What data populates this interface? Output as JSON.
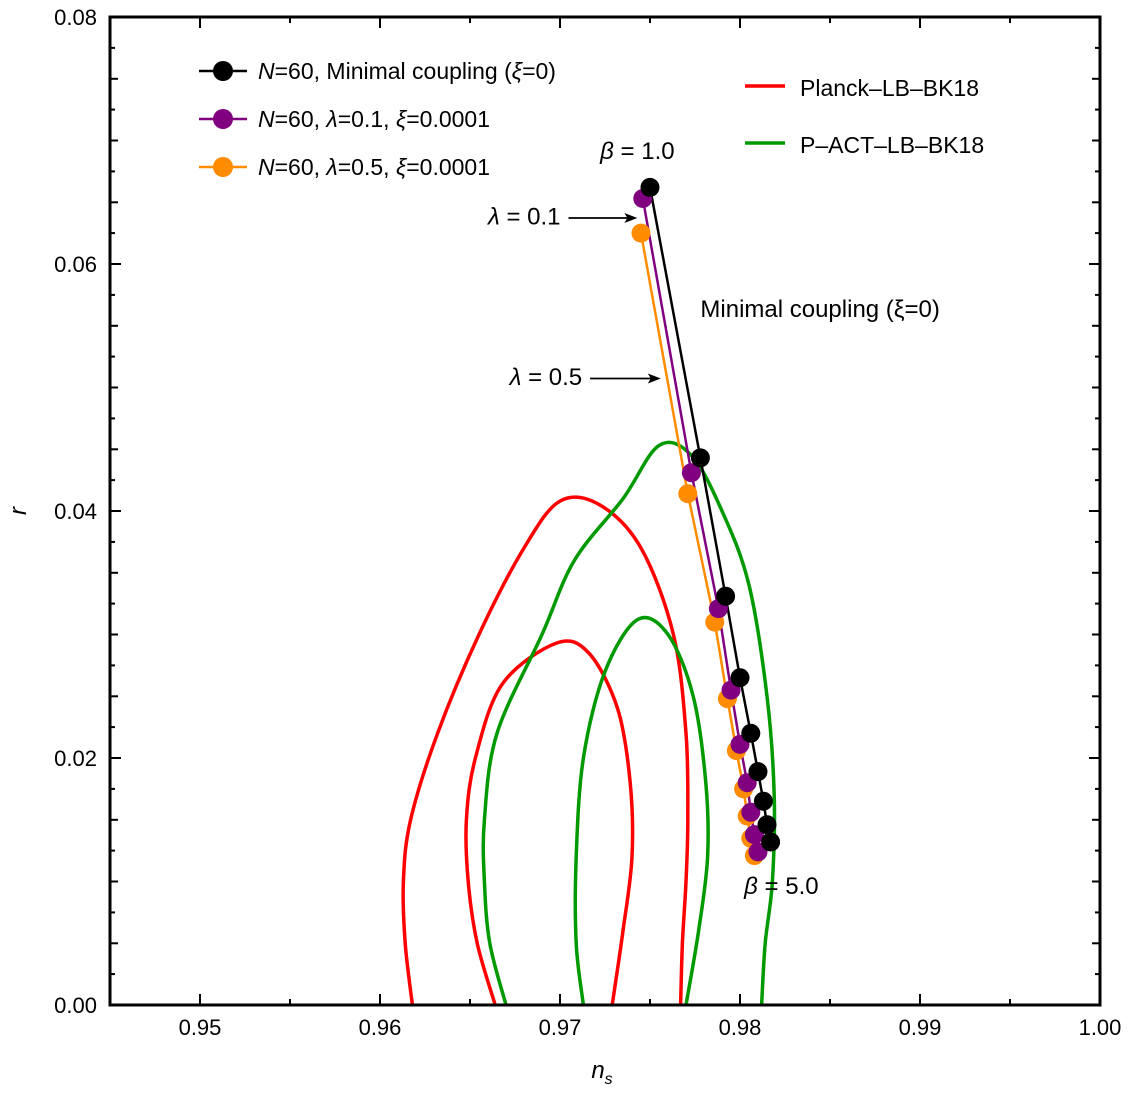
{
  "chart_data": {
    "type": "scatter",
    "title": "",
    "xlabel": "n",
    "xlabel_sub": "s",
    "ylabel": "r",
    "xlim": [
      0.945,
      1.0
    ],
    "ylim": [
      0.0,
      0.08
    ],
    "xticks": [
      0.95,
      0.96,
      0.97,
      0.98,
      0.99,
      1.0
    ],
    "xtick_labels": [
      "0.95",
      "0.96",
      "0.97",
      "0.98",
      "0.99",
      "1.00"
    ],
    "yticks": [
      0.0,
      0.02,
      0.04,
      0.06,
      0.08
    ],
    "ytick_labels": [
      "0.00",
      "0.02",
      "0.04",
      "0.06",
      "0.08"
    ],
    "series": [
      {
        "name": "N=60, Minimal coupling (ξ=0)",
        "legend_parts": [
          "N",
          "=60, Minimal coupling (",
          "ξ",
          "=0)"
        ],
        "color": "#000000",
        "x": [
          0.975,
          0.9778,
          0.9792,
          0.98,
          0.9806,
          0.981,
          0.9813,
          0.9815,
          0.9817
        ],
        "y": [
          0.0662,
          0.0443,
          0.0331,
          0.0265,
          0.022,
          0.0189,
          0.0165,
          0.0146,
          0.0132
        ]
      },
      {
        "name": "N=60, λ=0.1, ξ=0.0001",
        "legend_parts": [
          "N",
          "=60, ",
          "λ",
          "=0.1, ",
          "ξ",
          "=0.0001"
        ],
        "color": "#800080",
        "x": [
          0.9746,
          0.9773,
          0.9788,
          0.9795,
          0.98,
          0.9804,
          0.9806,
          0.9808,
          0.981
        ],
        "y": [
          0.0653,
          0.0431,
          0.0321,
          0.0255,
          0.0211,
          0.018,
          0.0156,
          0.0138,
          0.0124
        ]
      },
      {
        "name": "N=60, λ=0.5, ξ=0.0001",
        "legend_parts": [
          "N",
          "=60, ",
          "λ",
          "=0.5, ",
          "ξ",
          "=0.0001"
        ],
        "color": "#FF8C00",
        "x": [
          0.9745,
          0.9771,
          0.9786,
          0.9793,
          0.9798,
          0.9802,
          0.9804,
          0.9806,
          0.9808
        ],
        "y": [
          0.0625,
          0.0414,
          0.031,
          0.0248,
          0.0206,
          0.0175,
          0.0153,
          0.0135,
          0.0121
        ]
      }
    ],
    "contours": [
      {
        "name": "Planck–LB–BK18",
        "legend": true,
        "color": "#FF0000",
        "level": "95%",
        "points": [
          [
            0.9618,
            0.0
          ],
          [
            0.9614,
            0.005
          ],
          [
            0.9613,
            0.01
          ],
          [
            0.9617,
            0.015
          ],
          [
            0.9632,
            0.022
          ],
          [
            0.9655,
            0.03
          ],
          [
            0.968,
            0.037
          ],
          [
            0.97,
            0.0408
          ],
          [
            0.9722,
            0.0405
          ],
          [
            0.9745,
            0.037
          ],
          [
            0.9763,
            0.03
          ],
          [
            0.977,
            0.022
          ],
          [
            0.9771,
            0.015
          ],
          [
            0.977,
            0.01
          ],
          [
            0.9768,
            0.005
          ],
          [
            0.9767,
            0.0
          ]
        ]
      },
      {
        "name": "Planck–LB–BK18",
        "legend": false,
        "color": "#FF0000",
        "level": "68%",
        "points": [
          [
            0.9664,
            0.0
          ],
          [
            0.9654,
            0.005
          ],
          [
            0.9649,
            0.01
          ],
          [
            0.9648,
            0.015
          ],
          [
            0.9653,
            0.02
          ],
          [
            0.9668,
            0.026
          ],
          [
            0.9698,
            0.0293
          ],
          [
            0.9716,
            0.0285
          ],
          [
            0.9732,
            0.024
          ],
          [
            0.9739,
            0.018
          ],
          [
            0.974,
            0.012
          ],
          [
            0.9735,
            0.006
          ],
          [
            0.9729,
            0.0
          ]
        ]
      },
      {
        "name": "P–ACT–LB–BK18",
        "legend": true,
        "color": "#009900",
        "level": "95%",
        "points": [
          [
            0.967,
            0.0
          ],
          [
            0.9661,
            0.005
          ],
          [
            0.9658,
            0.01
          ],
          [
            0.9658,
            0.015
          ],
          [
            0.9665,
            0.022
          ],
          [
            0.969,
            0.03
          ],
          [
            0.9708,
            0.036
          ],
          [
            0.9735,
            0.041
          ],
          [
            0.9755,
            0.0453
          ],
          [
            0.9773,
            0.0445
          ],
          [
            0.979,
            0.04
          ],
          [
            0.9805,
            0.034
          ],
          [
            0.9815,
            0.025
          ],
          [
            0.9819,
            0.017
          ],
          [
            0.9818,
            0.01
          ],
          [
            0.9814,
            0.005
          ],
          [
            0.9812,
            0.0
          ]
        ]
      },
      {
        "name": "P–ACT–LB–BK18",
        "legend": false,
        "color": "#009900",
        "level": "68%",
        "points": [
          [
            0.9713,
            0.0
          ],
          [
            0.9709,
            0.005
          ],
          [
            0.9709,
            0.012
          ],
          [
            0.9713,
            0.02
          ],
          [
            0.9725,
            0.027
          ],
          [
            0.9743,
            0.0312
          ],
          [
            0.976,
            0.03
          ],
          [
            0.9774,
            0.025
          ],
          [
            0.9781,
            0.018
          ],
          [
            0.9782,
            0.012
          ],
          [
            0.9777,
            0.006
          ],
          [
            0.977,
            0.0
          ]
        ]
      }
    ],
    "annotations": [
      {
        "greek": "β",
        "rest": " = 1.0",
        "at": [
          0.9743,
          0.0685
        ],
        "anchor": "middle"
      },
      {
        "greek": "β",
        "rest": " = 5.0",
        "at": [
          0.9823,
          0.009
        ],
        "anchor": "middle"
      },
      {
        "greek": "",
        "rest": "Minimal coupling (ξ=0)",
        "at": [
          0.9778,
          0.0557
        ],
        "anchor": "start"
      },
      {
        "greek": "λ",
        "rest": " = 0.1",
        "at": [
          0.966,
          0.0632
        ],
        "anchor": "start",
        "arrow_to": [
          0.9743,
          0.064
        ]
      },
      {
        "greek": "λ",
        "rest": " = 0.5",
        "at": [
          0.9672,
          0.0502
        ],
        "anchor": "start",
        "arrow_to": [
          0.9756,
          0.051
        ]
      }
    ]
  }
}
